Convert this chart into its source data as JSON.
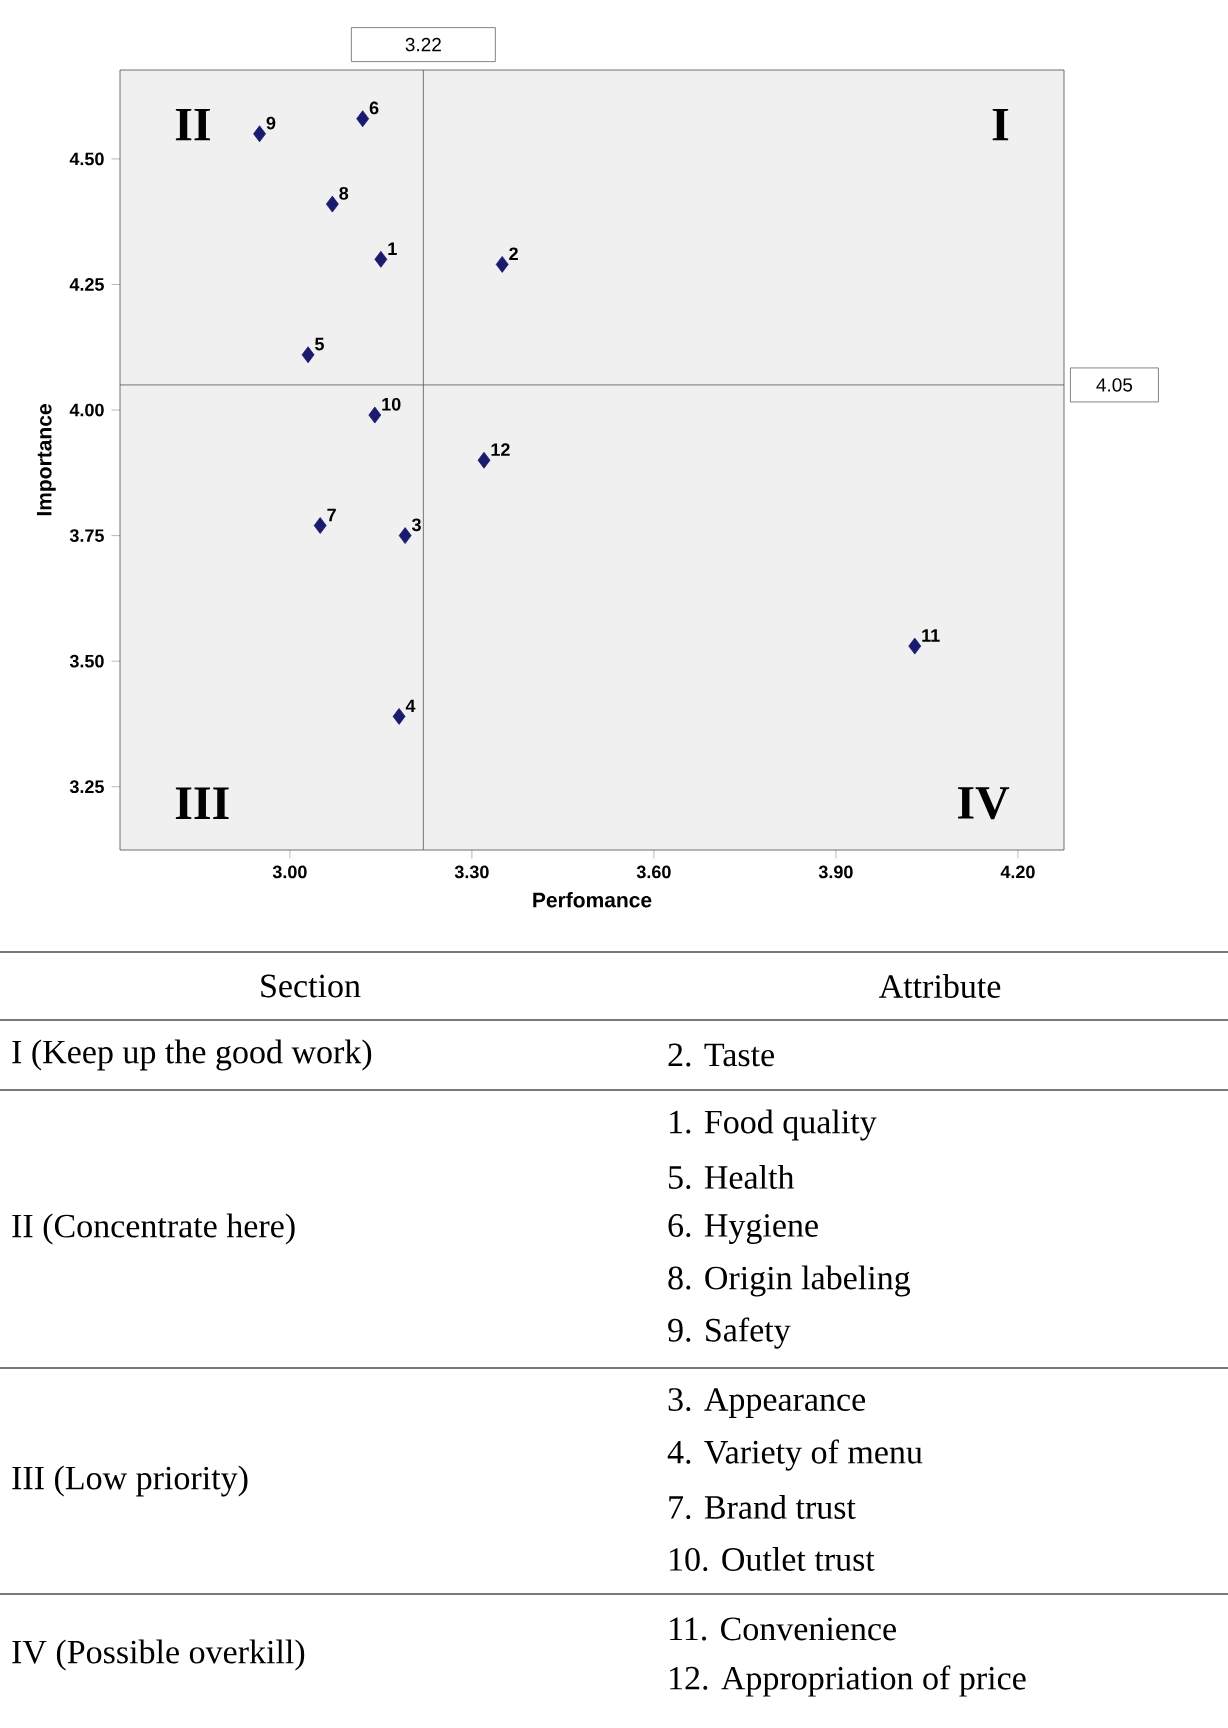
{
  "chart_data": {
    "type": "scatter",
    "xlabel": "Perfomance",
    "ylabel": "Importance",
    "x": [
      3.15,
      3.35,
      3.19,
      3.18,
      3.03,
      3.12,
      3.05,
      3.07,
      2.95,
      3.14,
      4.03,
      3.32
    ],
    "values": [
      4.3,
      4.29,
      3.75,
      3.39,
      4.11,
      4.58,
      3.77,
      4.41,
      4.55,
      3.99,
      3.53,
      3.9
    ],
    "color": "#1a1a6e",
    "marker": "diamond",
    "grid": false,
    "xlim": [
      2.72,
      4.276
    ],
    "ylim": [
      3.124,
      4.677
    ],
    "xticks": [
      {
        "value": 3,
        "label": "3.00"
      },
      {
        "value": 3.3,
        "label": "3.30"
      },
      {
        "value": 3.6,
        "label": "3.60"
      },
      {
        "value": 3.9,
        "label": "3.90"
      },
      {
        "value": 4.2,
        "label": "4.20"
      }
    ],
    "yticks": [
      {
        "value": 3.25,
        "label": "3.25"
      },
      {
        "value": 3.5,
        "label": "3.50"
      },
      {
        "value": 3.75,
        "label": "3.75"
      },
      {
        "value": 4,
        "label": "4.00"
      },
      {
        "value": 4.25,
        "label": "4.25"
      },
      {
        "value": 4.5,
        "label": "4.50"
      }
    ],
    "ref_lines": [
      {
        "axis": "x",
        "value": 3.22,
        "label": "3.22",
        "color": "#555555",
        "line_style": "solid"
      },
      {
        "axis": "y",
        "value": 4.05,
        "label": "4.05",
        "color": "#555555",
        "line_style": "solid"
      }
    ],
    "annotations": [
      "I",
      "II",
      "III",
      "IV",
      {
        "text": "1",
        "x": 3.15,
        "y": 4.3
      },
      {
        "text": "2",
        "x": 3.35,
        "y": 4.29
      },
      {
        "text": "3",
        "x": 3.19,
        "y": 3.75
      },
      {
        "text": "4",
        "x": 3.18,
        "y": 3.39
      },
      {
        "text": "5",
        "x": 3.03,
        "y": 4.11
      },
      {
        "text": "6",
        "x": 3.12,
        "y": 4.58
      },
      {
        "text": "7",
        "x": 3.05,
        "y": 3.77
      },
      {
        "text": "8",
        "x": 3.07,
        "y": 4.41
      },
      {
        "text": "9",
        "x": 2.95,
        "y": 4.55
      },
      {
        "text": "10",
        "x": 3.14,
        "y": 3.99
      },
      {
        "text": "11",
        "x": 4.03,
        "y": 3.53
      },
      {
        "text": "12",
        "x": 3.32,
        "y": 3.9
      },
      "Section",
      "Attribute",
      "I (Keep up the good work)",
      "2. Taste",
      "II (Concentrate here)",
      "1. Food quality",
      "5. Health",
      "6. Hygiene",
      "8. Origin labeling",
      "9. Safety",
      "III (Low priority)",
      "3. Appearance",
      "4. Variety of menu",
      "7. Brand trust",
      "10. Outlet trust",
      "IV (Possible overkill)",
      "11. Convenience",
      "12. Appropriation of price"
    ]
  }
}
